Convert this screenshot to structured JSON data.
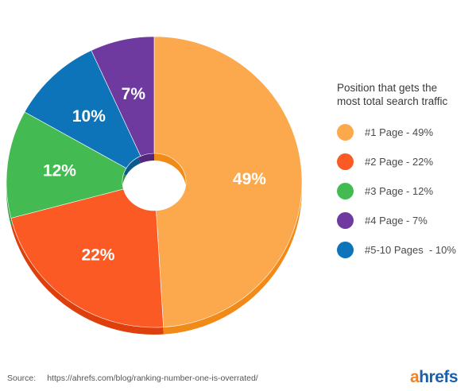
{
  "chart_data": {
    "type": "pie",
    "donut": true,
    "legend_title": [
      "Position that gets the",
      "most total search traffic"
    ],
    "legend_position": "right",
    "start": "top",
    "direction": "clockwise",
    "slices": [
      {
        "legend": "#1 Page - 49%",
        "label": "49%",
        "value": 49,
        "color": "#fca94e",
        "side_color": "#f28a17"
      },
      {
        "legend": "#2 Page - 22%",
        "label": "22%",
        "value": 22,
        "color": "#fb5a24",
        "side_color": "#df3f0c"
      },
      {
        "legend": "#3 Page - 12%",
        "label": "12%",
        "value": 12,
        "color": "#44bb52",
        "side_color": "#2f963b"
      },
      {
        "legend": "#5-10 Pages  - 10%",
        "label": "10%",
        "value": 10,
        "color": "#0d74b9",
        "side_color": "#0a5a8f"
      },
      {
        "legend": "#4 Page - 7%",
        "label": "7%",
        "value": 7,
        "color": "#6e3a9f",
        "side_color": "#52297a"
      }
    ],
    "legend_order": [
      0,
      1,
      2,
      4,
      3
    ]
  },
  "source": {
    "label": "Source:",
    "url": "https://ahrefs.com/blog/ranking-number-one-is-overrated/"
  },
  "brand": {
    "first": "a",
    "rest": "hrefs"
  }
}
